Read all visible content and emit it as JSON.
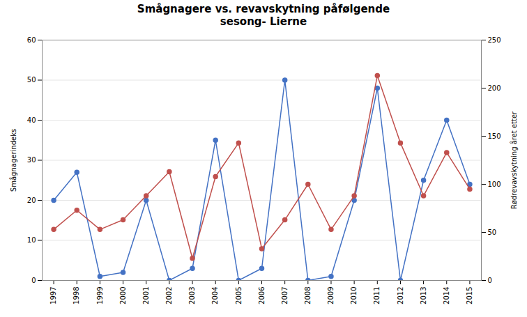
{
  "chart_data": {
    "type": "line",
    "title": "Smågnagere vs. revavskytning påfølgende\nsesong- Lierne",
    "x": [
      1997,
      1998,
      1999,
      2000,
      2001,
      2002,
      2003,
      2004,
      2005,
      2006,
      2007,
      2008,
      2009,
      2010,
      2011,
      2012,
      2013,
      2014,
      2015
    ],
    "xlim": [
      1996.5,
      2015.5
    ],
    "xticks": [
      1997,
      1998,
      1999,
      2000,
      2001,
      2002,
      2003,
      2004,
      2005,
      2006,
      2007,
      2008,
      2009,
      2010,
      2011,
      2012,
      2013,
      2014,
      2015
    ],
    "ylabel": "Smågnagerindeks",
    "y2label": "Rødrevavskytning året etter",
    "ylim": [
      0,
      60
    ],
    "yticks": [
      0,
      10,
      20,
      30,
      40,
      50,
      60
    ],
    "y2lim": [
      0,
      250
    ],
    "y2ticks": [
      0,
      50,
      100,
      150,
      200,
      250
    ],
    "grid": true,
    "series": [
      {
        "color": "#4472c4",
        "marker": "circle",
        "values": [
          20,
          27,
          1,
          2,
          20,
          0,
          3,
          35,
          0,
          3,
          50,
          0,
          1,
          20,
          48,
          0,
          25,
          40,
          24
        ]
      },
      {
        "color": "#c0504d",
        "marker": "circle",
        "axis": "y2",
        "values": [
          53,
          73,
          53,
          63,
          88,
          113,
          23,
          108,
          143,
          33,
          63,
          100,
          53,
          88,
          213,
          143,
          88,
          133,
          95
        ]
      }
    ]
  }
}
